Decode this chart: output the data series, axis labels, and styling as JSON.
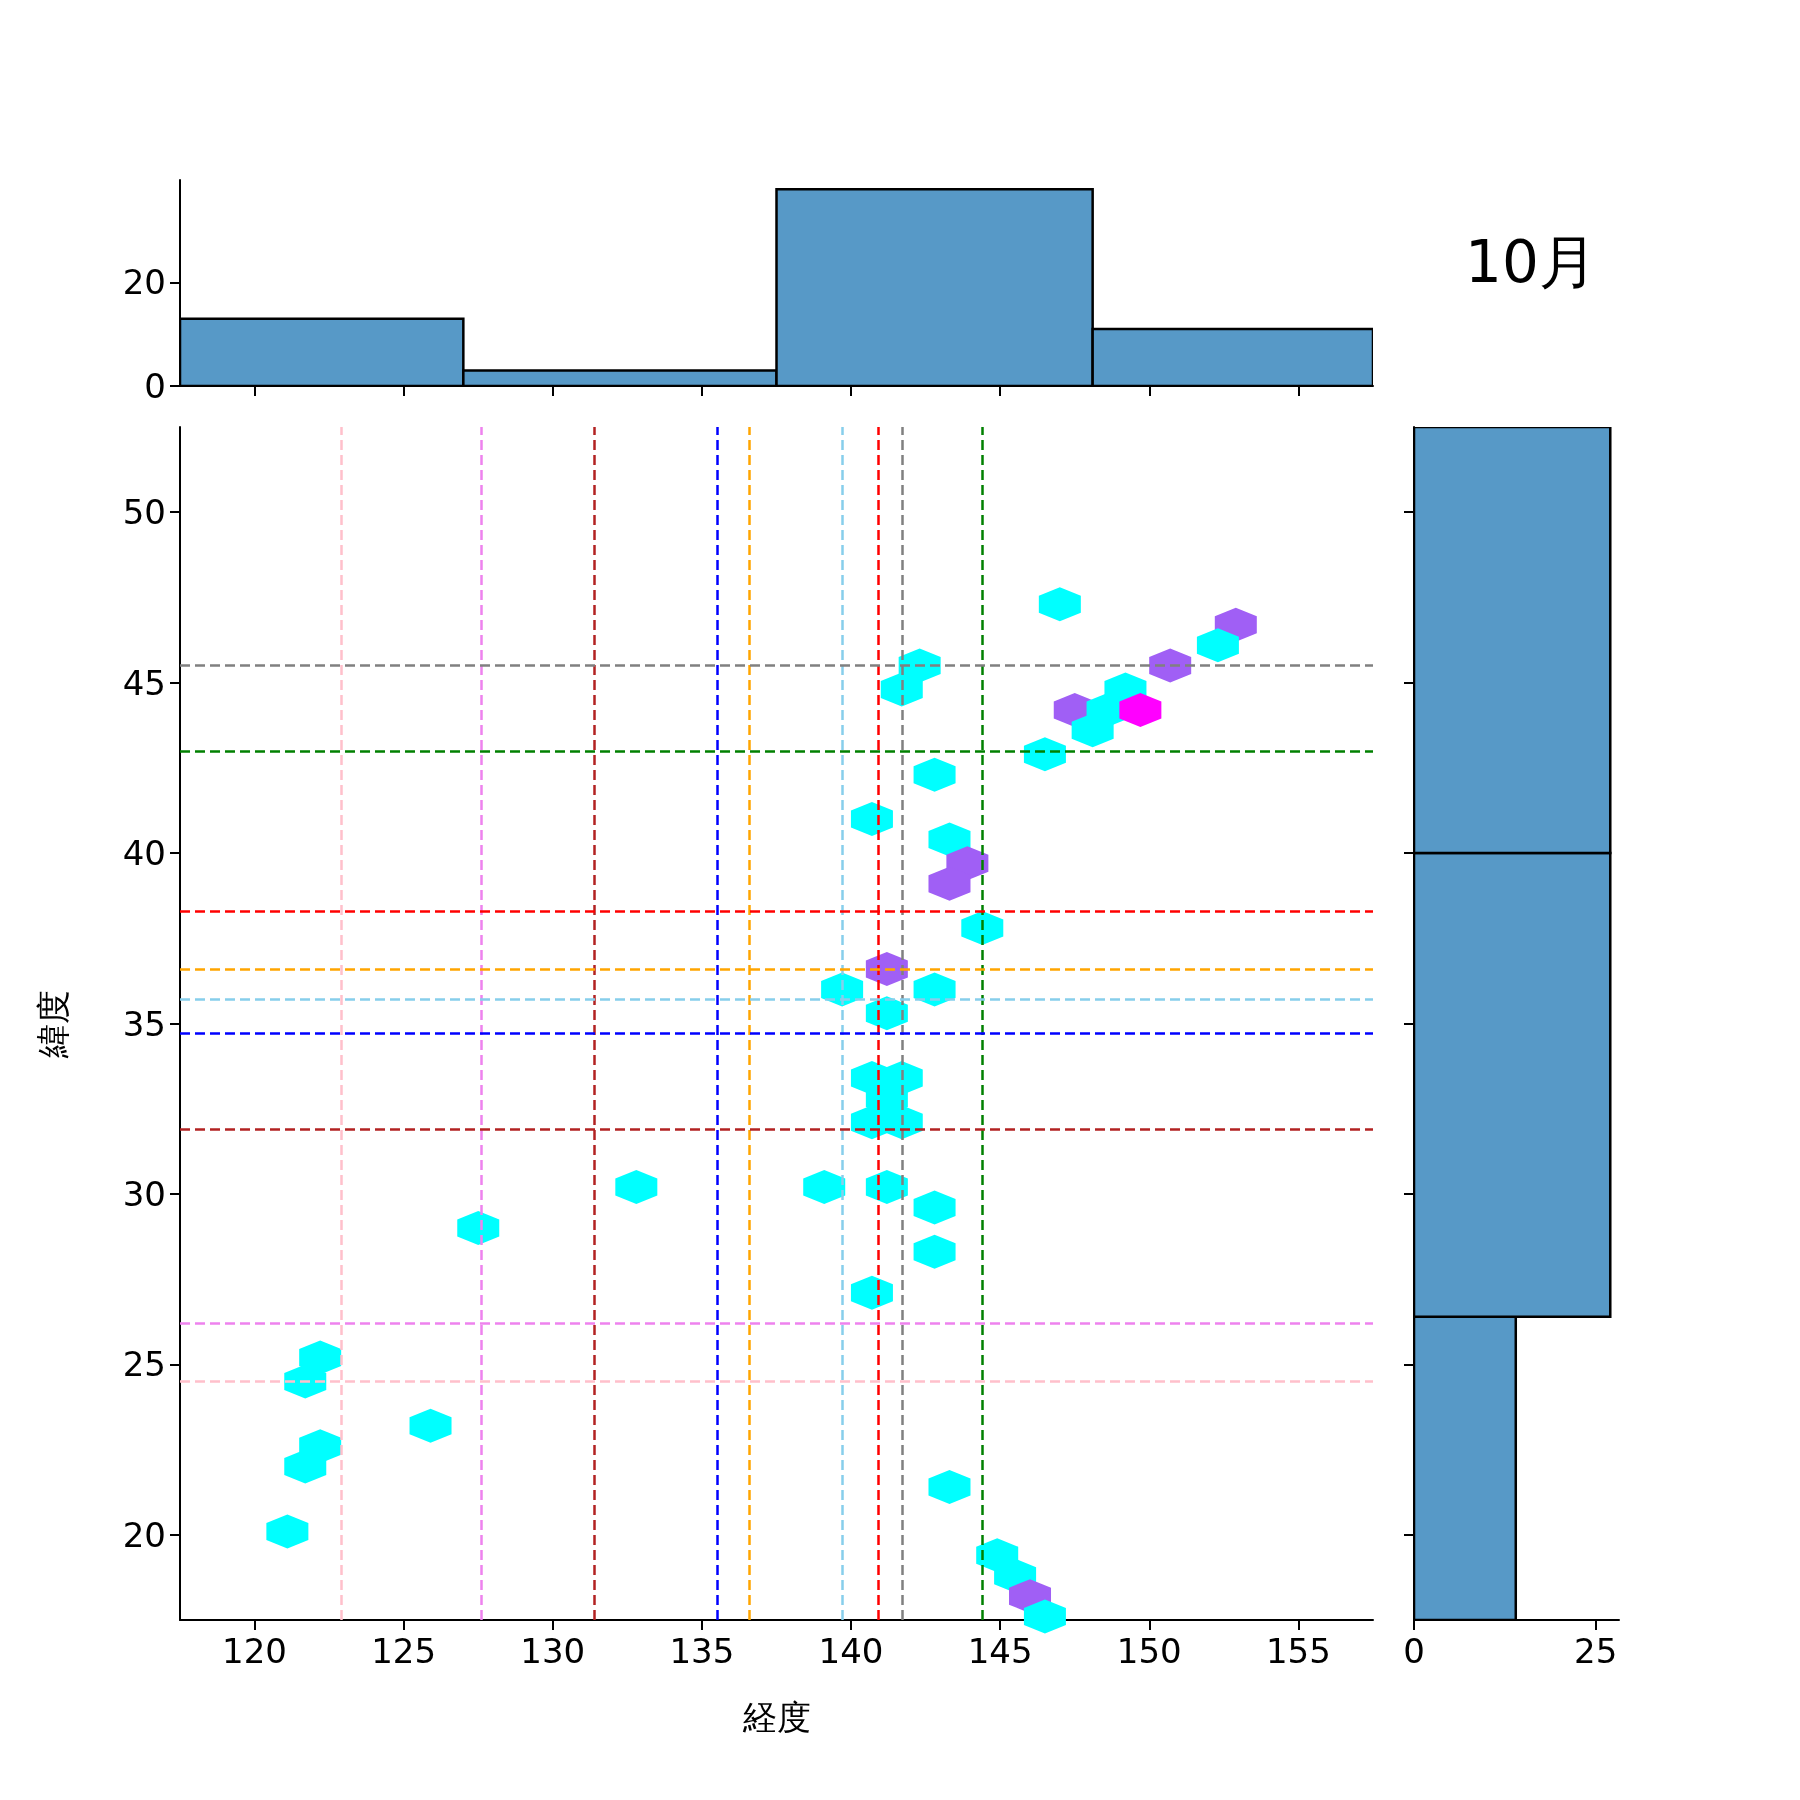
{
  "chart_data": [
    {
      "type": "histogram",
      "bins": [
        117.5,
        127.0,
        137.5,
        148.1,
        157.5
      ],
      "values": [
        13,
        3,
        38,
        11
      ],
      "color": "#5799c7",
      "xlim": [
        117.5,
        157.5
      ],
      "xticks": [
        {
          "value": 120,
          "label": null
        },
        {
          "value": 125,
          "label": null
        },
        {
          "value": 130,
          "label": null
        },
        {
          "value": 135,
          "label": null
        },
        {
          "value": 140,
          "label": null
        },
        {
          "value": 145,
          "label": null
        },
        {
          "value": 150,
          "label": null
        },
        {
          "value": 155,
          "label": null
        }
      ],
      "ylim": [
        0,
        39.8
      ],
      "yticks": [
        0,
        20
      ],
      "tick_labels": "y"
    },
    {
      "type": "scatter",
      "xlabel": "経度",
      "ylabel": "緯度",
      "x": [
        147.0,
        152.9,
        142.3,
        141.7,
        150.7,
        152.3,
        149.2,
        147.5,
        148.6,
        149.7,
        148.1,
        146.5,
        142.8,
        140.7,
        143.3,
        143.9,
        143.3,
        144.4,
        141.2,
        139.7,
        142.8,
        141.2,
        140.7,
        141.7,
        141.2,
        140.7,
        141.7,
        132.8,
        139.1,
        141.2,
        142.8,
        127.5,
        142.8,
        140.7,
        122.2,
        121.7,
        125.9,
        122.2,
        121.7,
        121.1,
        143.3,
        144.9,
        145.5,
        146.0,
        146.5
      ],
      "values": [
        47.3,
        46.7,
        45.5,
        44.8,
        45.5,
        46.1,
        44.8,
        44.2,
        44.2,
        44.2,
        43.6,
        42.9,
        42.3,
        41.0,
        40.4,
        39.7,
        39.1,
        37.8,
        36.6,
        36.0,
        36.0,
        35.3,
        33.4,
        33.4,
        32.8,
        32.1,
        32.1,
        30.2,
        30.2,
        30.2,
        29.6,
        29.0,
        28.3,
        27.1,
        25.2,
        24.5,
        23.2,
        22.6,
        22.0,
        20.1,
        21.4,
        19.4,
        18.8,
        18.2,
        17.6
      ],
      "colors": [
        "#00ffff",
        "#a05ff5",
        "#00ffff",
        "#00ffff",
        "#a05ff5",
        "#00ffff",
        "#00ffff",
        "#a05ff5",
        "#00ffff",
        "#ff00ff",
        "#00ffff",
        "#00ffff",
        "#00ffff",
        "#00ffff",
        "#00ffff",
        "#a05ff5",
        "#a05ff5",
        "#00ffff",
        "#a05ff5",
        "#00ffff",
        "#00ffff",
        "#00ffff",
        "#00ffff",
        "#00ffff",
        "#00ffff",
        "#00ffff",
        "#00ffff",
        "#00ffff",
        "#00ffff",
        "#00ffff",
        "#00ffff",
        "#00ffff",
        "#00ffff",
        "#00ffff",
        "#00ffff",
        "#00ffff",
        "#00ffff",
        "#00ffff",
        "#00ffff",
        "#00ffff",
        "#00ffff",
        "#00ffff",
        "#00ffff",
        "#a05ff5",
        "#00ffff"
      ],
      "xlim": [
        117.5,
        157.5
      ],
      "xticks": [
        120,
        125,
        130,
        135,
        140,
        145,
        150,
        155
      ],
      "ylim": [
        17.5,
        52.5
      ],
      "yticks": [
        20,
        25,
        30,
        35,
        40,
        45,
        50
      ],
      "ref_lines": [
        {
          "axis": "x",
          "value": 122.9,
          "color": "#ffc0cb",
          "line_style": "dashed"
        },
        {
          "axis": "x",
          "value": 127.6,
          "color": "#ee82ee",
          "line_style": "dashed"
        },
        {
          "axis": "x",
          "value": 131.4,
          "color": "#b22222",
          "line_style": "dashed"
        },
        {
          "axis": "x",
          "value": 135.5,
          "color": "#0000ff",
          "line_style": "dashed"
        },
        {
          "axis": "x",
          "value": 136.6,
          "color": "#ffa500",
          "line_style": "dashed"
        },
        {
          "axis": "x",
          "value": 139.7,
          "color": "#87ceeb",
          "line_style": "dashed"
        },
        {
          "axis": "x",
          "value": 140.9,
          "color": "#ff0000",
          "line_style": "dashed"
        },
        {
          "axis": "x",
          "value": 141.7,
          "color": "#808080",
          "line_style": "dashed"
        },
        {
          "axis": "x",
          "value": 144.4,
          "color": "#008000",
          "line_style": "dashed"
        },
        {
          "axis": "y",
          "value": 45.5,
          "color": "#808080",
          "line_style": "dashed"
        },
        {
          "axis": "y",
          "value": 43.0,
          "color": "#008000",
          "line_style": "dashed"
        },
        {
          "axis": "y",
          "value": 38.3,
          "color": "#ff0000",
          "line_style": "dashed"
        },
        {
          "axis": "y",
          "value": 36.6,
          "color": "#ffa500",
          "line_style": "dashed"
        },
        {
          "axis": "y",
          "value": 35.7,
          "color": "#87ceeb",
          "line_style": "dashed"
        },
        {
          "axis": "y",
          "value": 34.7,
          "color": "#0000ff",
          "line_style": "dashed"
        },
        {
          "axis": "y",
          "value": 31.9,
          "color": "#b22222",
          "line_style": "dashed"
        },
        {
          "axis": "y",
          "value": 26.2,
          "color": "#ee82ee",
          "line_style": "dashed"
        },
        {
          "axis": "y",
          "value": 24.5,
          "color": "#ffc0cb",
          "line_style": "dashed"
        }
      ]
    },
    {
      "type": "histogram",
      "title": "10月",
      "orientation": "horizontal",
      "bins": [
        17.5,
        26.4,
        40.0,
        52.5
      ],
      "values": [
        14,
        27,
        27
      ],
      "color": "#5799c7",
      "xlim": [
        0,
        28.2
      ],
      "xticks": [
        0,
        25
      ],
      "ylim": [
        17.5,
        52.5
      ],
      "yticks": [
        {
          "value": 20,
          "label": null
        },
        {
          "value": 25,
          "label": null
        },
        {
          "value": 30,
          "label": null
        },
        {
          "value": 35,
          "label": null
        },
        {
          "value": 40,
          "label": null
        },
        {
          "value": 45,
          "label": null
        },
        {
          "value": 50,
          "label": null
        }
      ],
      "tick_labels": "x"
    }
  ]
}
